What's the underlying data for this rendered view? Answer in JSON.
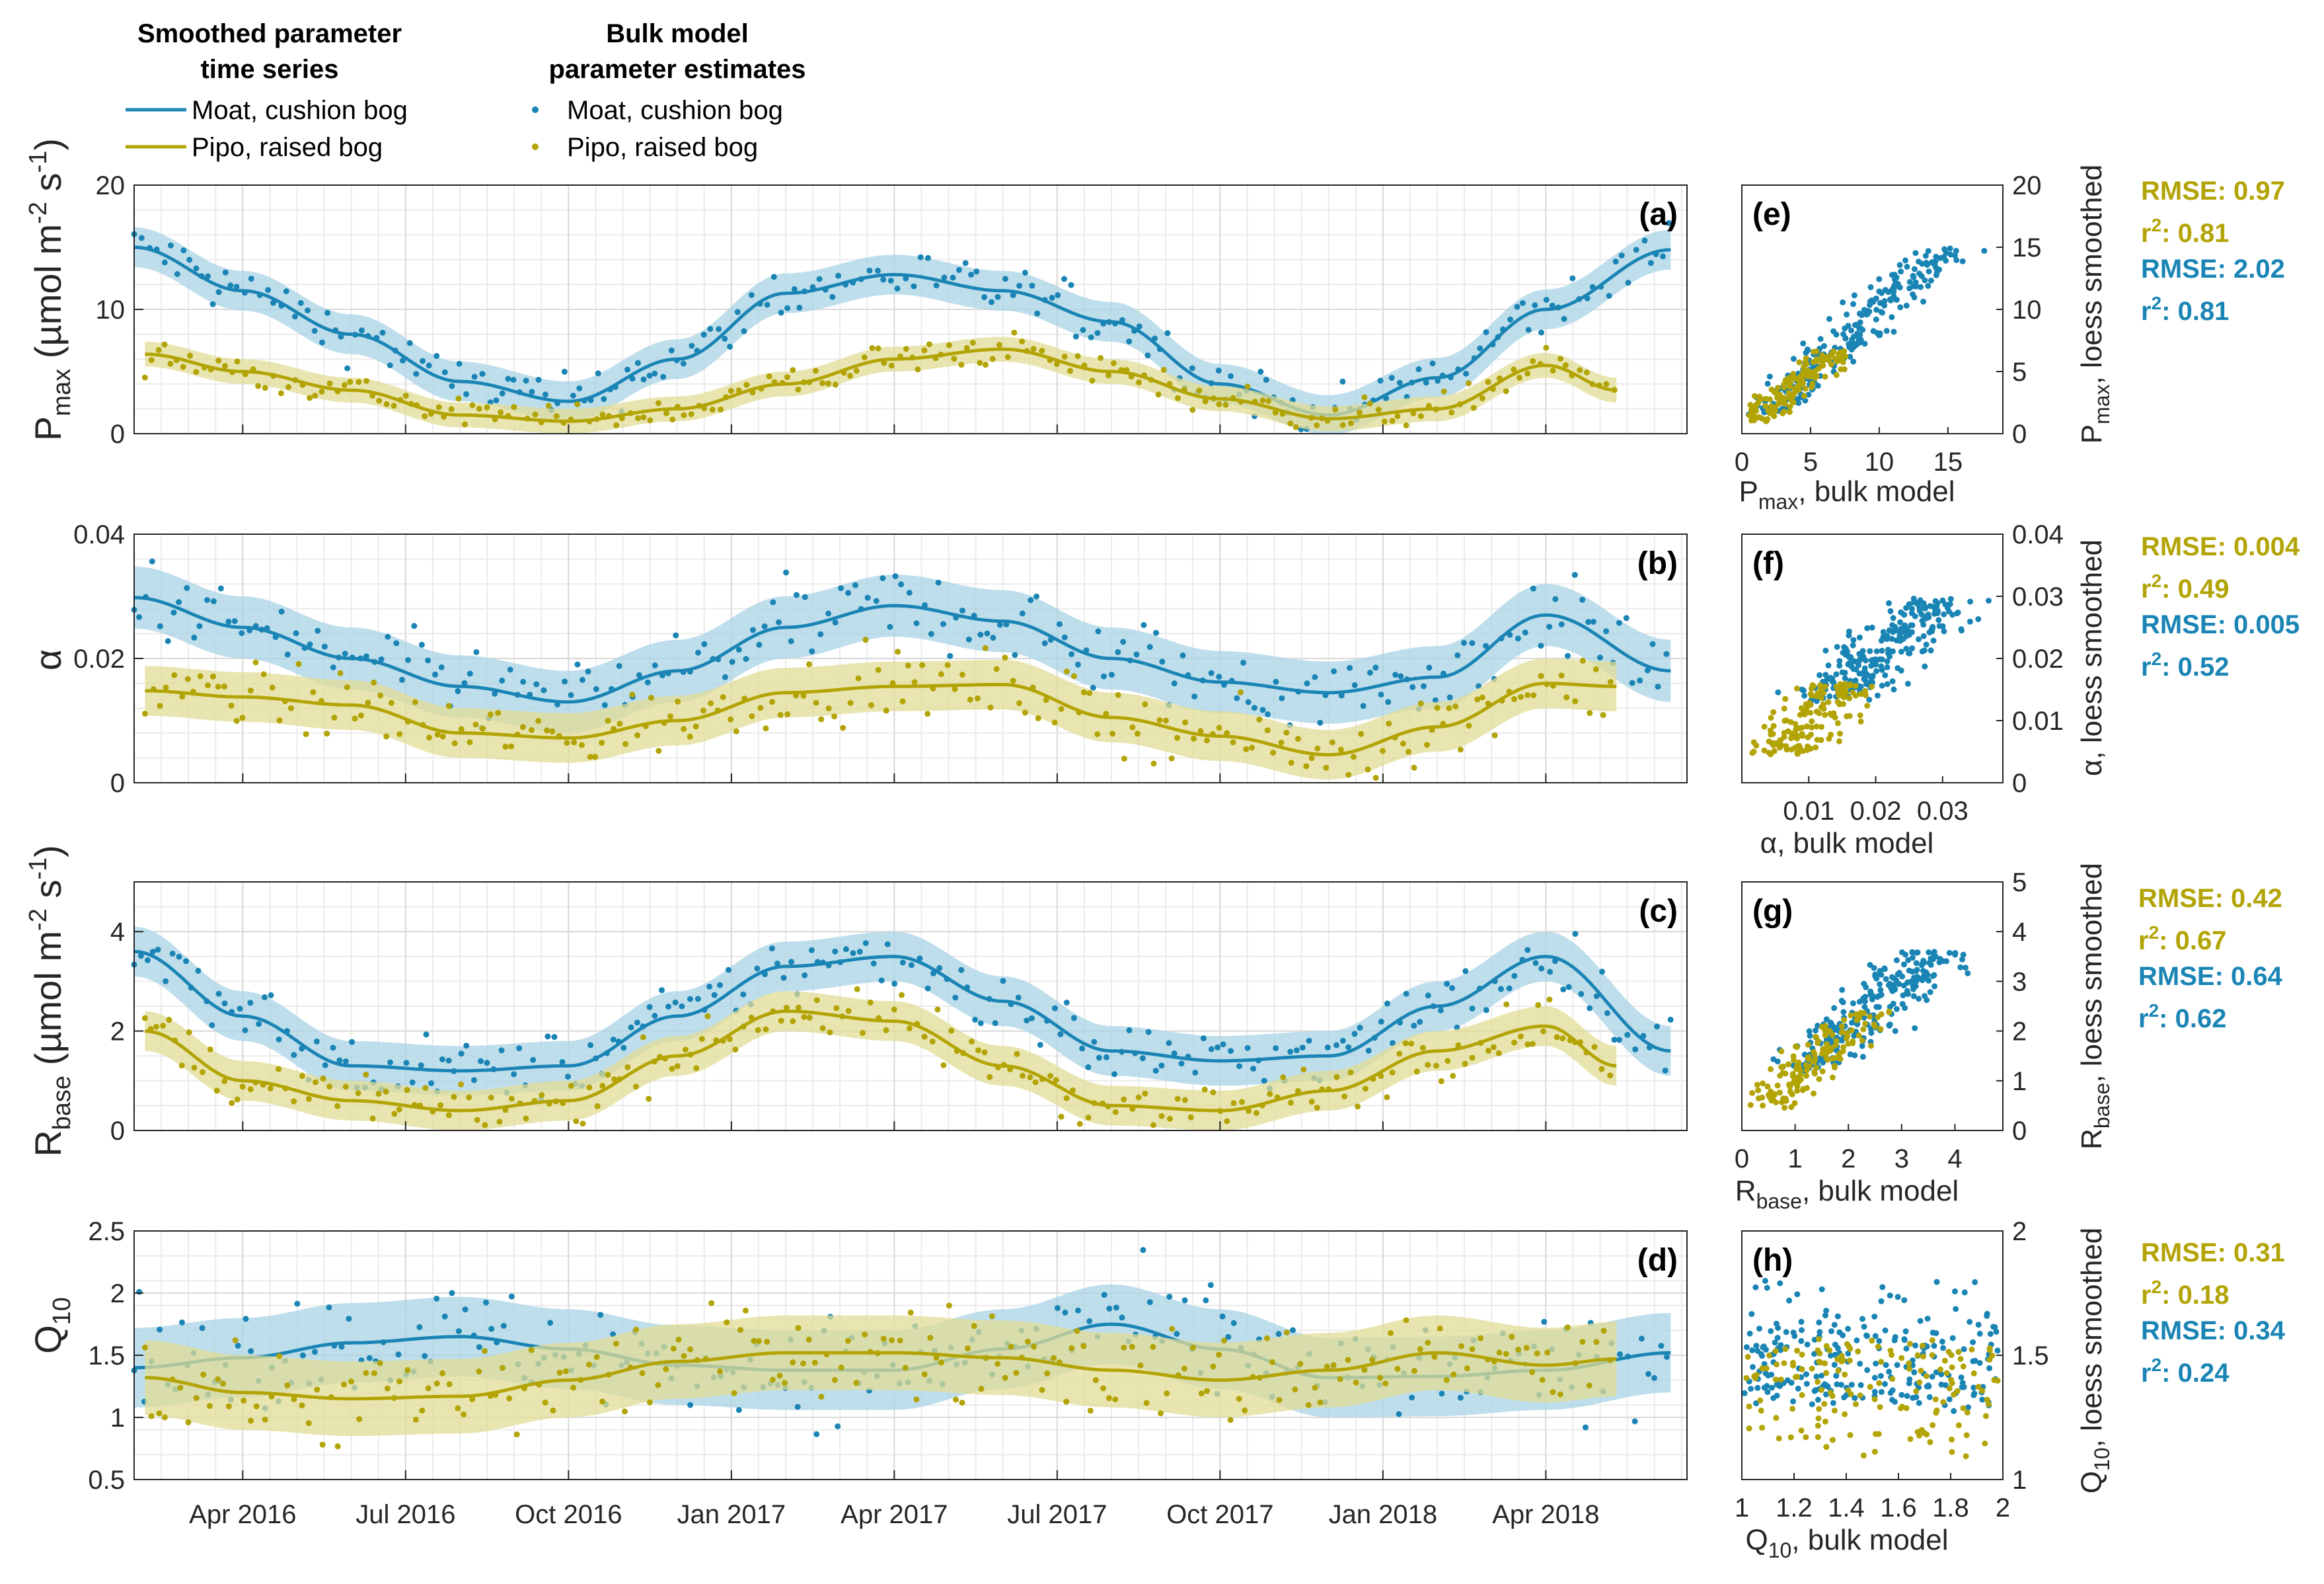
{
  "colors": {
    "moat": "#1a85b5",
    "pipo": "#b3a406",
    "moat_band": "#a9d3e6",
    "pipo_band": "#e2dc95"
  },
  "legend": {
    "title_smoothed": [
      "Smoothed parameter",
      "time series"
    ],
    "title_bulk": [
      "Bulk model",
      "parameter estimates"
    ],
    "moat": "Moat, cushion bog",
    "pipo": "Pipo, raised bog"
  },
  "x_ticks": [
    "Apr 2016",
    "Jul 2016",
    "Oct 2016",
    "Jan 2017",
    "Apr 2017",
    "Jul 2017",
    "Oct 2017",
    "Jan 2018",
    "Apr 2018"
  ],
  "chart_data": [
    {
      "id": "a",
      "type": "line",
      "label": "(a)",
      "ylabel": "P_max (µmol m^-2 s^-1)",
      "ylim": [
        0,
        20
      ],
      "yticks": [
        0,
        10,
        20
      ],
      "grid": true,
      "xlim_months": [
        0,
        28.6
      ],
      "series": [
        {
          "name": "Moat, cushion bog",
          "band": 1.6,
          "x_months": [
            0,
            2,
            4,
            6,
            8,
            10,
            12,
            14,
            16,
            18,
            20,
            22,
            24,
            26,
            28.3
          ],
          "values": [
            15.0,
            11.5,
            8.0,
            4.2,
            2.6,
            6.0,
            11.3,
            12.8,
            11.5,
            9.0,
            4.0,
            1.5,
            4.5,
            10.0,
            14.8
          ]
        },
        {
          "name": "Pipo, raised bog",
          "band": 1.0,
          "x_months": [
            0.2,
            2,
            4,
            6,
            8,
            10,
            12,
            14,
            16,
            18,
            20,
            22,
            24,
            26,
            27.3
          ],
          "values": [
            6.4,
            5.0,
            3.5,
            1.5,
            1.0,
            2.0,
            4.0,
            6.0,
            6.8,
            5.0,
            2.8,
            1.2,
            2.0,
            5.5,
            3.5
          ]
        }
      ]
    },
    {
      "id": "b",
      "type": "line",
      "label": "(b)",
      "ylabel": "α",
      "ylim": [
        0,
        0.04
      ],
      "yticks": [
        0,
        0.02,
        0.04
      ],
      "grid": true,
      "xlim_months": [
        0,
        28.6
      ],
      "series": [
        {
          "name": "Moat, cushion bog",
          "band": 0.005,
          "x_months": [
            0,
            2,
            4,
            6,
            8,
            10,
            12,
            14,
            16,
            18,
            20,
            22,
            24,
            26,
            28.3
          ],
          "values": [
            0.0298,
            0.025,
            0.02,
            0.0155,
            0.013,
            0.018,
            0.025,
            0.0285,
            0.026,
            0.02,
            0.0162,
            0.0145,
            0.017,
            0.027,
            0.018
          ]
        },
        {
          "name": "Pipo, raised bog",
          "band": 0.004,
          "x_months": [
            0.2,
            2,
            4,
            6,
            8,
            10,
            12,
            14,
            16,
            18,
            20,
            22,
            24,
            26,
            27.3
          ],
          "values": [
            0.0148,
            0.0138,
            0.0125,
            0.008,
            0.0072,
            0.01,
            0.0145,
            0.0155,
            0.0158,
            0.0105,
            0.0075,
            0.0045,
            0.009,
            0.016,
            0.0155
          ]
        }
      ]
    },
    {
      "id": "c",
      "type": "line",
      "label": "(c)",
      "ylabel": "R_base (µmol m^-2 s^-1)",
      "ylim": [
        0,
        5
      ],
      "yticks": [
        0,
        2,
        4
      ],
      "grid": true,
      "xlim_months": [
        0,
        28.6
      ],
      "series": [
        {
          "name": "Moat, cushion bog",
          "band": 0.5,
          "x_months": [
            0,
            2,
            4,
            6,
            8,
            10,
            12,
            14,
            16,
            18,
            20,
            22,
            24,
            26,
            28.3
          ],
          "values": [
            3.6,
            2.3,
            1.3,
            1.2,
            1.3,
            2.3,
            3.3,
            3.5,
            2.6,
            1.6,
            1.4,
            1.5,
            2.5,
            3.5,
            1.6
          ]
        },
        {
          "name": "Pipo, raised bog",
          "band": 0.4,
          "x_months": [
            0.2,
            2,
            4,
            6,
            8,
            10,
            12,
            14,
            16,
            18,
            20,
            22,
            24,
            26,
            27.3
          ],
          "values": [
            2.0,
            1.0,
            0.6,
            0.4,
            0.6,
            1.5,
            2.4,
            2.2,
            1.3,
            0.5,
            0.4,
            0.8,
            1.6,
            2.1,
            1.3
          ]
        }
      ]
    },
    {
      "id": "d",
      "type": "line",
      "label": "(d)",
      "ylabel": "Q_10",
      "ylim": [
        0.5,
        2.5
      ],
      "yticks": [
        0.5,
        1,
        1.5,
        2,
        2.5
      ],
      "grid": true,
      "xlim_months": [
        0,
        28.6
      ],
      "series": [
        {
          "name": "Moat, cushion bog",
          "band": 0.32,
          "x_months": [
            0,
            2,
            4,
            6,
            8,
            10,
            12,
            14,
            16,
            18,
            20,
            22,
            24,
            26,
            28.3
          ],
          "values": [
            1.4,
            1.48,
            1.6,
            1.65,
            1.55,
            1.42,
            1.38,
            1.38,
            1.55,
            1.75,
            1.55,
            1.32,
            1.33,
            1.38,
            1.52
          ]
        },
        {
          "name": "Pipo, raised bog",
          "band": 0.3,
          "x_months": [
            0.2,
            2,
            4,
            6,
            8,
            10,
            12,
            14,
            16,
            18,
            20,
            22,
            24,
            26,
            27.3
          ],
          "values": [
            1.32,
            1.2,
            1.15,
            1.17,
            1.3,
            1.45,
            1.52,
            1.52,
            1.48,
            1.38,
            1.3,
            1.38,
            1.52,
            1.42,
            1.47
          ]
        }
      ]
    },
    {
      "id": "e",
      "type": "scatter",
      "label": "(e)",
      "xlabel": "P_max, bulk model",
      "ylabel": "P_max, loess smoothed",
      "xlim": [
        0,
        19
      ],
      "ylim": [
        0,
        20
      ],
      "xticks": [
        0,
        5,
        10,
        15
      ],
      "yticks": [
        0,
        5,
        10,
        15,
        20
      ],
      "stats": [
        {
          "color": "pipo",
          "rmse": "RMSE: 0.97",
          "r2": "0.81"
        },
        {
          "color": "moat",
          "rmse": "RMSE: 2.02",
          "r2": "0.81"
        }
      ]
    },
    {
      "id": "f",
      "type": "scatter",
      "label": "(f)",
      "xlabel": "α, bulk model",
      "ylabel": "α, loess smoothed",
      "xlim": [
        0,
        0.039
      ],
      "ylim": [
        0,
        0.04
      ],
      "xticks": [
        0.01,
        0.02,
        0.03
      ],
      "yticks": [
        0,
        0.01,
        0.02,
        0.03,
        0.04
      ],
      "stats": [
        {
          "color": "pipo",
          "rmse": "RMSE: 0.004",
          "r2": "0.49"
        },
        {
          "color": "moat",
          "rmse": "RMSE: 0.005",
          "r2": "0.52"
        }
      ]
    },
    {
      "id": "g",
      "type": "scatter",
      "label": "(g)",
      "xlabel": "R_base, bulk model",
      "ylabel": "R_base, loess smoothed",
      "xlim": [
        0,
        4.9
      ],
      "ylim": [
        0,
        5
      ],
      "xticks": [
        0,
        1,
        2,
        3,
        4
      ],
      "yticks": [
        0,
        1,
        2,
        3,
        4,
        5
      ],
      "stats": [
        {
          "color": "pipo",
          "rmse": "RMSE: 0.42",
          "r2": "0.67"
        },
        {
          "color": "moat",
          "rmse": "RMSE: 0.64",
          "r2": "0.62"
        }
      ]
    },
    {
      "id": "h",
      "type": "scatter",
      "label": "(h)",
      "xlabel": "Q_10, bulk model",
      "ylabel": "Q_10, loess smoothed",
      "xlim": [
        1,
        2
      ],
      "ylim": [
        1,
        2
      ],
      "xticks": [
        1,
        1.2,
        1.4,
        1.6,
        1.8,
        2
      ],
      "yticks": [
        1,
        1.5,
        2
      ],
      "stats": [
        {
          "color": "pipo",
          "rmse": "RMSE: 0.31",
          "r2": "0.18"
        },
        {
          "color": "moat",
          "rmse": "RMSE: 0.34",
          "r2": "0.24"
        }
      ]
    }
  ]
}
